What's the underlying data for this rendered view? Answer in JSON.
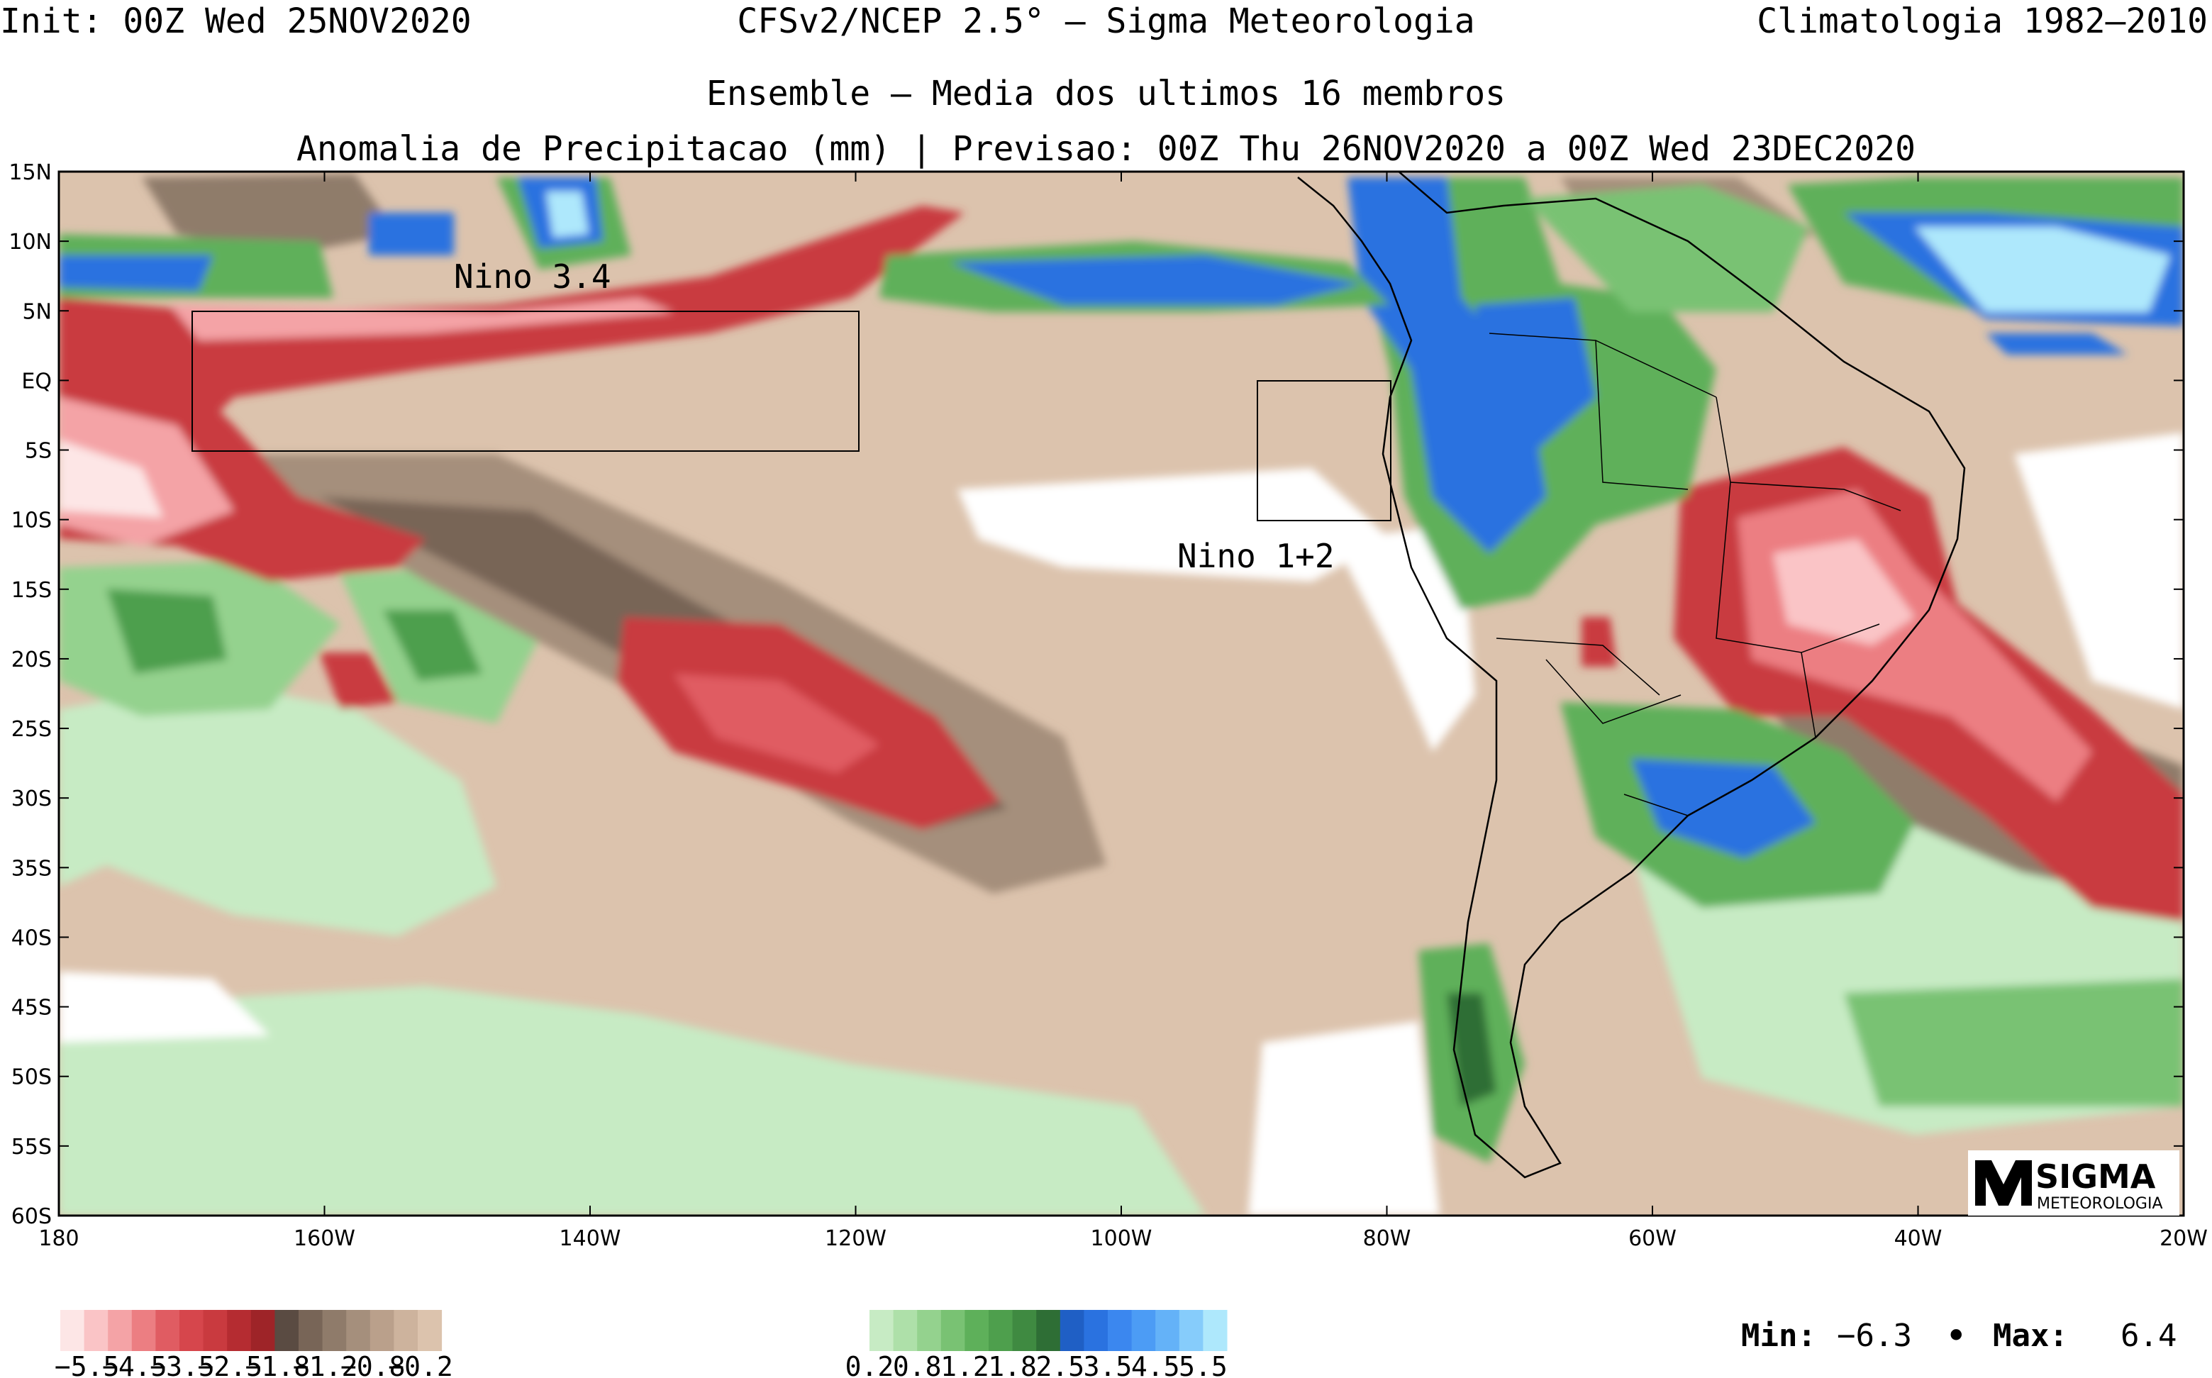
{
  "header": {
    "init": "Init: 00Z Wed 25NOV2020",
    "model": "CFSv2/NCEP 2.5° — Sigma Meteorologia",
    "climatology": "Climatologia 1982—2010",
    "subtitle1": "Ensemble — Media dos ultimos 16 membros",
    "subtitle2": "Anomalia de Precipitacao (mm) | Previsao: 00Z Thu 26NOV2020 a 00Z Wed 23DEC2020"
  },
  "axes": {
    "lat_labels": [
      "15N",
      "10N",
      "5N",
      "EQ",
      "5S",
      "10S",
      "15S",
      "20S",
      "25S",
      "30S",
      "35S",
      "40S",
      "45S",
      "50S",
      "55S",
      "60S"
    ],
    "lat_values": [
      15,
      10,
      5,
      0,
      -5,
      -10,
      -15,
      -20,
      -25,
      -30,
      -35,
      -40,
      -45,
      -50,
      -55,
      -60
    ],
    "lon_labels": [
      "180",
      "160W",
      "140W",
      "120W",
      "100W",
      "80W",
      "60W",
      "40W",
      "20W"
    ],
    "lon_values": [
      -180,
      -160,
      -140,
      -120,
      -100,
      -80,
      -60,
      -40,
      -20
    ],
    "lon_range": [
      -180,
      -20
    ],
    "lat_range": [
      -60,
      15
    ]
  },
  "regions": [
    {
      "label": "Nino 3.4",
      "lon": [
        -170,
        -120
      ],
      "lat": [
        -5,
        5
      ]
    },
    {
      "label": "Nino 1+2",
      "lon": [
        -90,
        -80
      ],
      "lat": [
        -10,
        0
      ]
    }
  ],
  "legend": {
    "negative_colors": [
      "#fde6e6",
      "#fac4c6",
      "#f4a3a6",
      "#ec7e82",
      "#e05c62",
      "#d6464c",
      "#c93a3f",
      "#b52c31",
      "#9e2428",
      "#5a4b42",
      "#786557",
      "#8f7b6a",
      "#a58f7c",
      "#baa08b",
      "#cdb39d",
      "#dcc3ad"
    ],
    "negative_labels": [
      "-5.5",
      "-4.5",
      "-3.5",
      "-2.5",
      "-1.8",
      "-1.2",
      "-0.8",
      "-0.2"
    ],
    "positive_colors": [
      "#c7ebc4",
      "#aee0a9",
      "#94d28e",
      "#79c273",
      "#5eb05a",
      "#4e9f4d",
      "#3f8a41",
      "#2e6e35",
      "#1f5fc5",
      "#2a72e0",
      "#3b87ef",
      "#4c9cf5",
      "#64b2f8",
      "#86ccfb",
      "#aee8fc"
    ],
    "positive_labels": [
      "0.2",
      "0.8",
      "1.2",
      "1.8",
      "2.5",
      "3.5",
      "4.5",
      "5.5"
    ]
  },
  "stats": {
    "min_label": "Min:",
    "min_value": "−6.3",
    "max_label": "Max:",
    "max_value": "6.4",
    "separator": "•"
  },
  "logo": {
    "text_top": "SIGMA",
    "text_bottom": "METEOROLOGIA"
  },
  "colors": {
    "ocean_neutral": "#dcc3ad",
    "dry_strong": "#c93a3f",
    "wet_green": "#5eb05a",
    "wet_blue": "#2a72e0"
  }
}
